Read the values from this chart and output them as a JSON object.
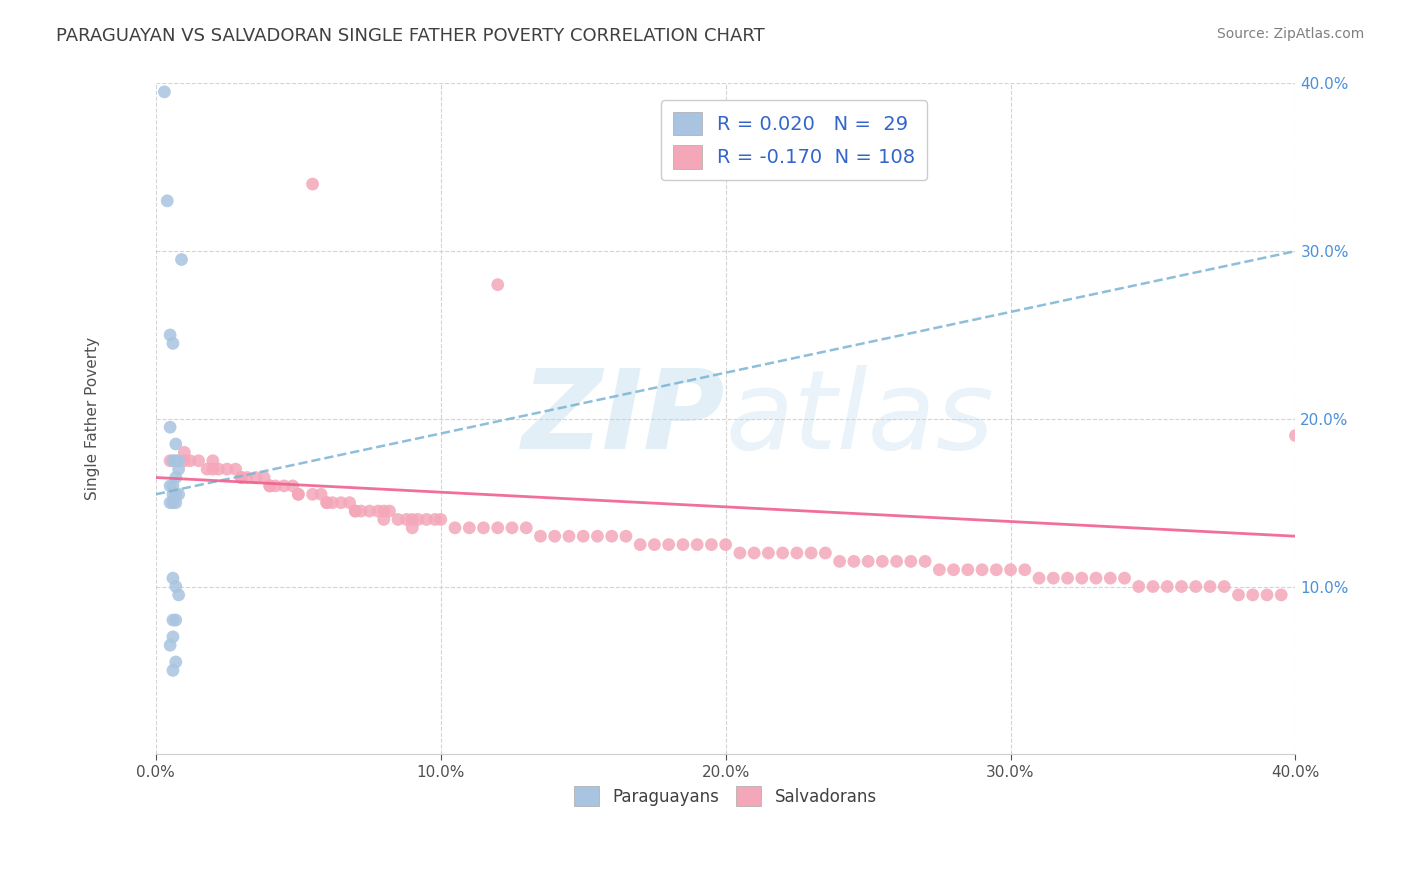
{
  "title": "PARAGUAYAN VS SALVADORAN SINGLE FATHER POVERTY CORRELATION CHART",
  "source": "Source: ZipAtlas.com",
  "ylabel": "Single Father Poverty",
  "watermark": "ZIPatlas",
  "xlim": [
    0.0,
    0.4
  ],
  "ylim": [
    0.0,
    0.4
  ],
  "xticks": [
    0.0,
    0.1,
    0.2,
    0.3,
    0.4
  ],
  "yticks": [
    0.1,
    0.2,
    0.3,
    0.4
  ],
  "legend_paraguayan": "Paraguayans",
  "legend_salvadoran": "Salvadorans",
  "R_paraguayan": 0.02,
  "N_paraguayan": 29,
  "R_salvadoran": -0.17,
  "N_salvadoran": 108,
  "color_paraguayan": "#a8c4e0",
  "color_salvadoran": "#f4a7b9",
  "trendline_paraguayan_color": "#7ab3d4",
  "trendline_salvadoran_color": "#f06090",
  "background_color": "#ffffff",
  "grid_color": "#d0d0d0",
  "title_color": "#404040",
  "axis_label_color": "#4a90d9",
  "par_x": [
    0.003,
    0.004,
    0.009,
    0.005,
    0.006,
    0.005,
    0.007,
    0.008,
    0.006,
    0.007,
    0.008,
    0.007,
    0.006,
    0.005,
    0.006,
    0.007,
    0.008,
    0.006,
    0.005,
    0.007,
    0.006,
    0.007,
    0.008,
    0.006,
    0.007,
    0.006,
    0.005,
    0.007,
    0.006
  ],
  "par_y": [
    0.395,
    0.33,
    0.295,
    0.25,
    0.245,
    0.195,
    0.185,
    0.175,
    0.175,
    0.175,
    0.17,
    0.165,
    0.16,
    0.16,
    0.155,
    0.155,
    0.155,
    0.15,
    0.15,
    0.15,
    0.105,
    0.1,
    0.095,
    0.08,
    0.08,
    0.07,
    0.065,
    0.055,
    0.05
  ],
  "sal_x": [
    0.055,
    0.12,
    0.005,
    0.01,
    0.012,
    0.015,
    0.018,
    0.02,
    0.022,
    0.025,
    0.028,
    0.03,
    0.032,
    0.035,
    0.038,
    0.04,
    0.042,
    0.045,
    0.048,
    0.05,
    0.055,
    0.058,
    0.06,
    0.062,
    0.065,
    0.068,
    0.07,
    0.072,
    0.075,
    0.078,
    0.08,
    0.082,
    0.085,
    0.088,
    0.09,
    0.092,
    0.095,
    0.098,
    0.1,
    0.105,
    0.11,
    0.115,
    0.12,
    0.125,
    0.13,
    0.135,
    0.14,
    0.145,
    0.15,
    0.155,
    0.16,
    0.165,
    0.17,
    0.175,
    0.18,
    0.185,
    0.19,
    0.195,
    0.2,
    0.205,
    0.21,
    0.215,
    0.22,
    0.225,
    0.23,
    0.235,
    0.24,
    0.245,
    0.25,
    0.255,
    0.26,
    0.265,
    0.27,
    0.275,
    0.28,
    0.285,
    0.29,
    0.295,
    0.3,
    0.305,
    0.31,
    0.315,
    0.32,
    0.325,
    0.33,
    0.335,
    0.34,
    0.345,
    0.35,
    0.355,
    0.36,
    0.365,
    0.37,
    0.375,
    0.38,
    0.385,
    0.39,
    0.395,
    0.4,
    0.01,
    0.02,
    0.03,
    0.04,
    0.05,
    0.06,
    0.07,
    0.08,
    0.09
  ],
  "sal_y": [
    0.34,
    0.28,
    0.175,
    0.18,
    0.175,
    0.175,
    0.17,
    0.175,
    0.17,
    0.17,
    0.17,
    0.165,
    0.165,
    0.165,
    0.165,
    0.16,
    0.16,
    0.16,
    0.16,
    0.155,
    0.155,
    0.155,
    0.15,
    0.15,
    0.15,
    0.15,
    0.145,
    0.145,
    0.145,
    0.145,
    0.145,
    0.145,
    0.14,
    0.14,
    0.14,
    0.14,
    0.14,
    0.14,
    0.14,
    0.135,
    0.135,
    0.135,
    0.135,
    0.135,
    0.135,
    0.13,
    0.13,
    0.13,
    0.13,
    0.13,
    0.13,
    0.13,
    0.125,
    0.125,
    0.125,
    0.125,
    0.125,
    0.125,
    0.125,
    0.12,
    0.12,
    0.12,
    0.12,
    0.12,
    0.12,
    0.12,
    0.115,
    0.115,
    0.115,
    0.115,
    0.115,
    0.115,
    0.115,
    0.11,
    0.11,
    0.11,
    0.11,
    0.11,
    0.11,
    0.11,
    0.105,
    0.105,
    0.105,
    0.105,
    0.105,
    0.105,
    0.105,
    0.1,
    0.1,
    0.1,
    0.1,
    0.1,
    0.1,
    0.1,
    0.095,
    0.095,
    0.095,
    0.095,
    0.19,
    0.175,
    0.17,
    0.165,
    0.16,
    0.155,
    0.15,
    0.145,
    0.14,
    0.135
  ]
}
